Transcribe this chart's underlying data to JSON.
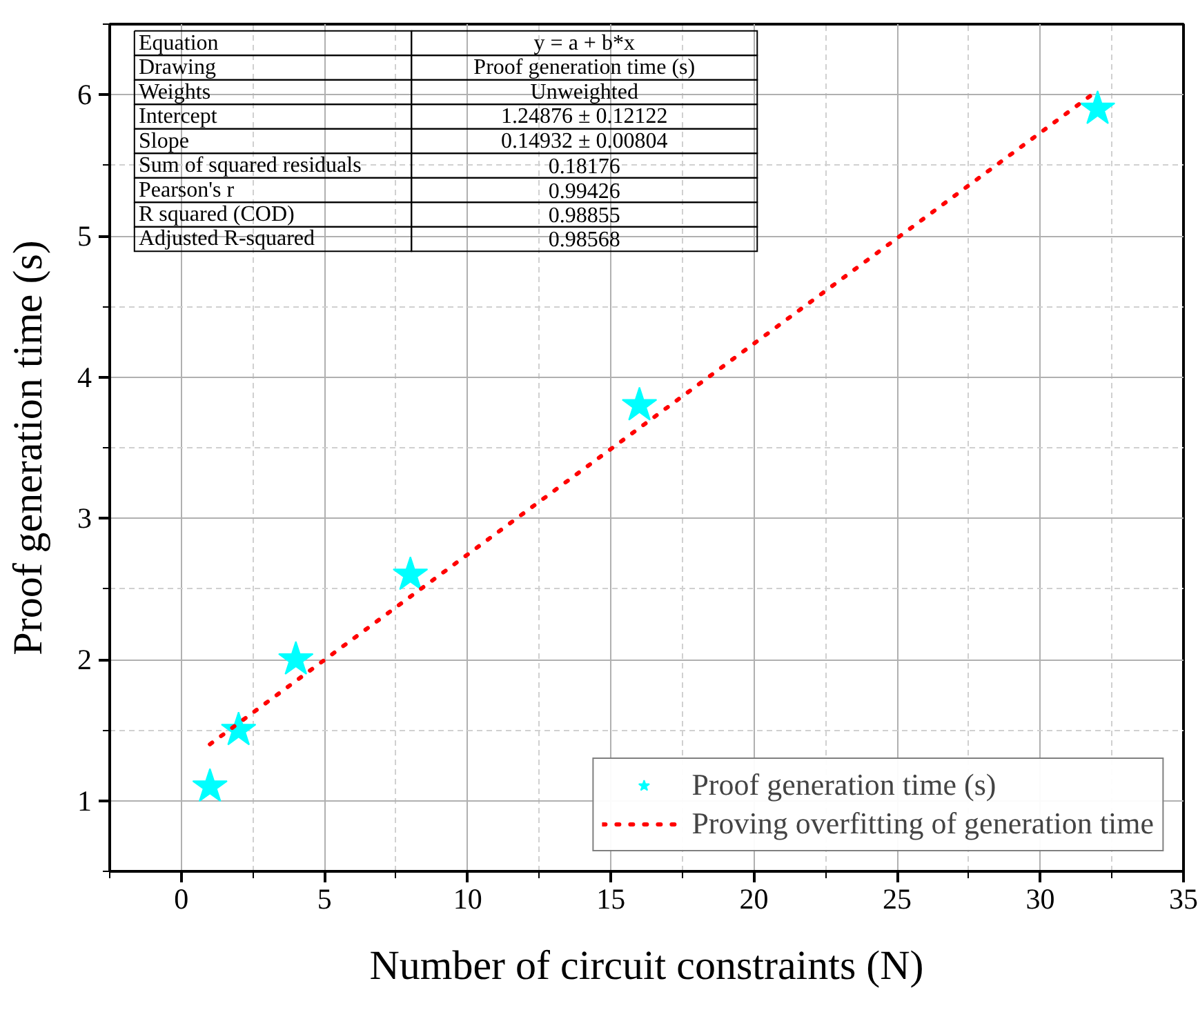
{
  "chart_data": {
    "type": "scatter",
    "xlabel": "Number of circuit constraints (N)",
    "ylabel": "Proof generation time (s)",
    "x": [
      1,
      2,
      4,
      8,
      16,
      32
    ],
    "series": [
      {
        "name": "Proof generation time (s)",
        "color": "#00ffff",
        "marker": "star",
        "values": [
          1.1,
          1.5,
          2.0,
          2.6,
          3.8,
          5.9
        ]
      },
      {
        "name": "Proving overfitting of generation time",
        "color": "#ff0000",
        "type": "line",
        "marker": "none",
        "line_style": "dotted",
        "x": [
          1,
          32
        ],
        "values": [
          1.4,
          6.03
        ]
      }
    ],
    "xlim": [
      -2.5,
      35
    ],
    "ylim": [
      0.5,
      6.5
    ],
    "xticks": [
      0,
      5,
      10,
      15,
      20,
      25,
      30,
      35
    ],
    "yticks": [
      1,
      2,
      3,
      4,
      5,
      6
    ],
    "grid": true,
    "legend": "bottom right",
    "annotations": [
      "Equation",
      "y = a + b*x",
      "Drawing",
      "Proof generation time (s)",
      "Weights",
      "Unweighted",
      "Intercept",
      "1.24876 ± 0.12122",
      "Slope",
      "0.14932 ± 0.00804",
      "Sum of squared residuals",
      "0.18176",
      "Pearson's r",
      "0.99426",
      "R squared (COD)",
      "0.98855",
      "Adjusted R-squared",
      "0.98568"
    ]
  }
}
